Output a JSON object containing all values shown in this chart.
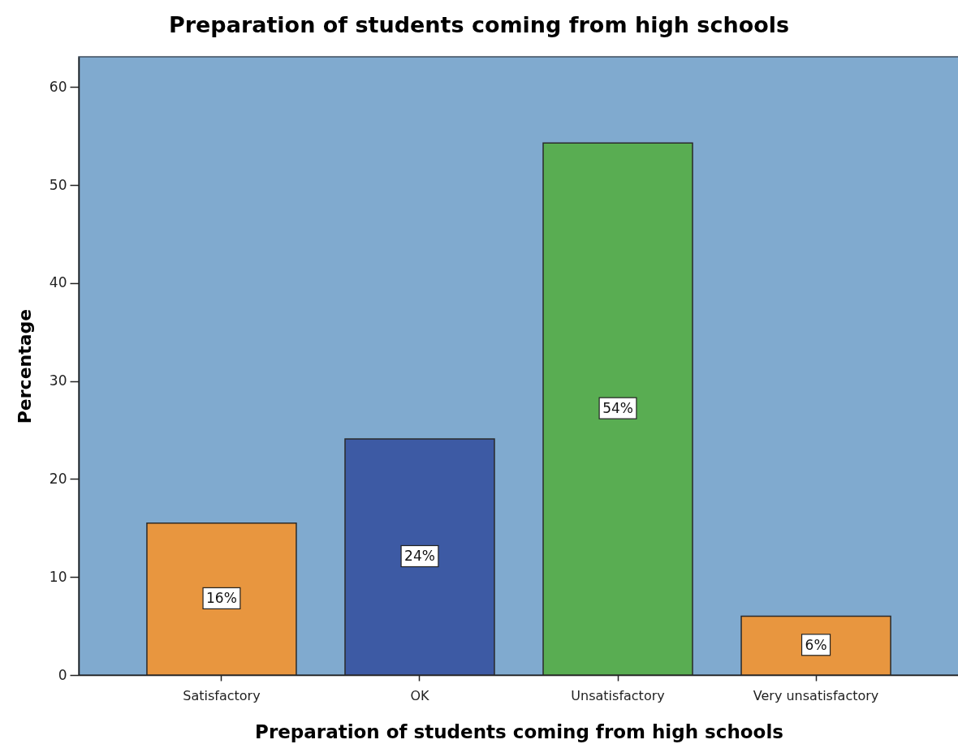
{
  "chart_data": {
    "type": "bar",
    "title": "Preparation of students coming from high schools",
    "xlabel": "Preparation of students coming from high schools",
    "ylabel": "Percentage",
    "categories": [
      "Satisfactory",
      "OK",
      "Unsatisfactory",
      "Very unsatisfactory"
    ],
    "values": [
      15.5,
      24.1,
      54.3,
      6.0
    ],
    "colors": [
      "#e8963f",
      "#3d5aa4",
      "#59ad52",
      "#e8963f"
    ],
    "value_labels": [
      "16%",
      "24%",
      "54%",
      "6%"
    ],
    "ylim": [
      0,
      63.1
    ],
    "yticks": [
      0,
      10,
      20,
      30,
      40,
      50,
      60
    ]
  }
}
